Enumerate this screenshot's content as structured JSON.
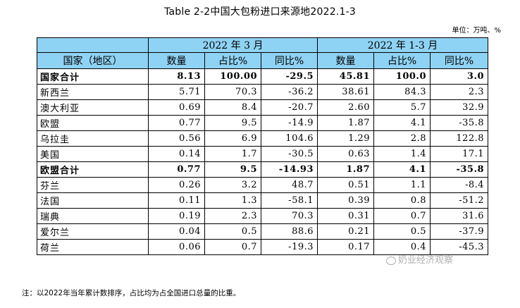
{
  "title": "Table 2-2中国大包粉进口来源地2022.1-3",
  "unit": "单位：万吨、%",
  "header": {
    "group1": "2022 年 3 月",
    "group2": "2022 年 1-3 月",
    "country_col": "国家（地区）",
    "cols": [
      "数量",
      "占比%",
      "同比%",
      "数量",
      "占比%",
      "同比%"
    ]
  },
  "rows": [
    {
      "name": "国家合计",
      "bold": true,
      "values": [
        "8.13",
        "100.00",
        "-29.5",
        "45.81",
        "100.0",
        "3.0"
      ]
    },
    {
      "name": "新西兰",
      "bold": false,
      "values": [
        "5.71",
        "70.3",
        "-36.2",
        "38.61",
        "84.3",
        "2.3"
      ]
    },
    {
      "name": "澳大利亚",
      "bold": false,
      "values": [
        "0.69",
        "8.4",
        "-20.7",
        "2.60",
        "5.7",
        "32.9"
      ]
    },
    {
      "name": "欧盟",
      "bold": false,
      "values": [
        "0.77",
        "9.5",
        "-14.9",
        "1.87",
        "4.1",
        "-35.8"
      ]
    },
    {
      "name": "乌拉圭",
      "bold": false,
      "values": [
        "0.56",
        "6.9",
        "104.6",
        "1.29",
        "2.8",
        "122.8"
      ]
    },
    {
      "name": "美国",
      "bold": false,
      "values": [
        "0.14",
        "1.7",
        "-30.5",
        "0.63",
        "1.4",
        "17.1"
      ]
    },
    {
      "name": "欧盟合计",
      "bold": true,
      "values": [
        "0.77",
        "9.5",
        "-14.93",
        "1.87",
        "4.1",
        "-35.8"
      ]
    },
    {
      "name": "芬兰",
      "bold": false,
      "values": [
        "0.26",
        "3.2",
        "48.7",
        "0.51",
        "1.1",
        "-8.4"
      ]
    },
    {
      "name": "法国",
      "bold": false,
      "values": [
        "0.11",
        "1.3",
        "-58.1",
        "0.39",
        "0.8",
        "-51.2"
      ]
    },
    {
      "name": "瑞典",
      "bold": false,
      "values": [
        "0.19",
        "2.3",
        "70.3",
        "0.31",
        "0.7",
        "31.6"
      ]
    },
    {
      "name": "爱尔兰",
      "bold": false,
      "values": [
        "0.04",
        "0.5",
        "88.6",
        "0.21",
        "0.5",
        "-37.9"
      ]
    },
    {
      "name": "荷兰",
      "bold": false,
      "values": [
        "0.06",
        "0.7",
        "-19.3",
        "0.17",
        "0.4",
        "-45.3"
      ]
    }
  ],
  "note": "注：以2022年当年累计数排序，占比均为占全国进口总量的比重。",
  "watermark": "奶业经济观察"
}
